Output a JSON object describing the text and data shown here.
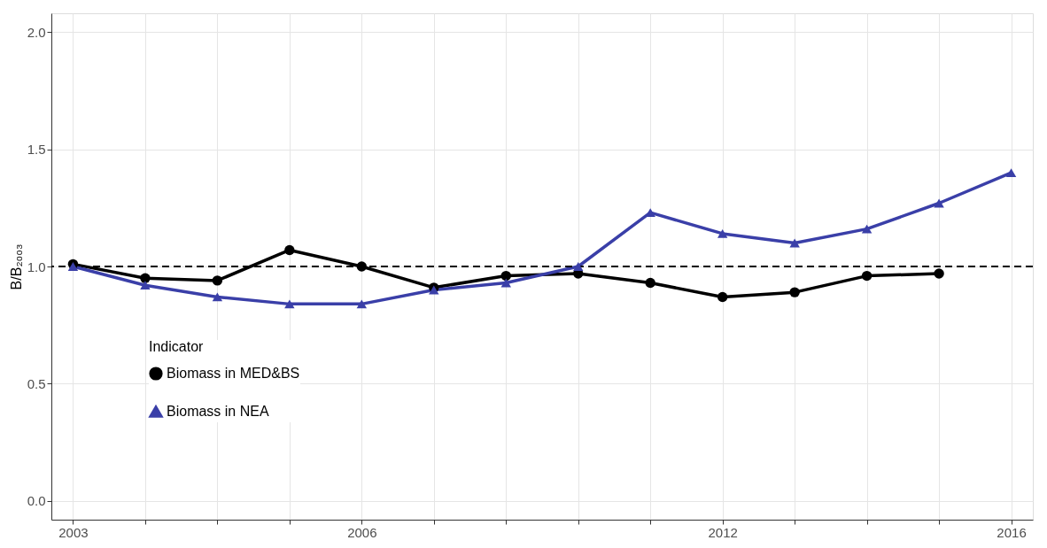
{
  "chart_data": {
    "type": "line",
    "ylabel": "B/B₂₀₀₃",
    "legend_title": "Indicator",
    "categories": [
      "2003",
      null,
      null,
      null,
      "2006",
      null,
      null,
      null,
      null,
      "2012",
      null,
      null,
      null,
      "2016"
    ],
    "series": [
      {
        "name": "Biomass in MED&BS",
        "color": "#000000",
        "marker": "circle",
        "values": [
          1.01,
          0.95,
          0.94,
          1.07,
          1.0,
          0.91,
          0.96,
          0.97,
          0.93,
          0.87,
          0.89,
          0.96,
          0.97,
          null
        ]
      },
      {
        "name": "Biomass in NEA",
        "color": "#3a3fa8",
        "marker": "triangle",
        "values": [
          1.0,
          0.92,
          0.87,
          0.84,
          0.84,
          0.9,
          0.93,
          1.0,
          1.23,
          1.14,
          1.1,
          1.16,
          1.27,
          1.4
        ]
      }
    ],
    "ylim": [
      -0.08,
      2.08
    ],
    "yticks": [
      {
        "value": 0,
        "label": "0.0"
      },
      0.5,
      {
        "value": 1,
        "label": "1.0"
      },
      1.5,
      {
        "value": 2,
        "label": "2.0"
      }
    ],
    "ref_lines": [
      {
        "axis": "y",
        "value": 1,
        "color": "#000000",
        "line_style": "dashed"
      }
    ],
    "grid": true,
    "legend": "bottom left",
    "line_style": "solid"
  }
}
